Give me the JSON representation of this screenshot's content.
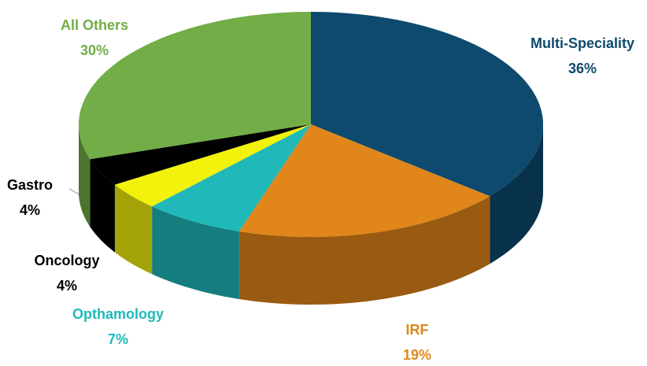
{
  "chart_data": {
    "type": "pie3d",
    "categories": [
      "Multi-Speciality",
      "IRF",
      "Opthamology",
      "Oncology",
      "Gastro",
      "All Others"
    ],
    "values": [
      36,
      19,
      7,
      4,
      4,
      30
    ],
    "value_labels": [
      "36%",
      "19%",
      "7%",
      "4%",
      "4%",
      "30%"
    ],
    "colors": [
      "#0d4a6e",
      "#e0861a",
      "#20b8b8",
      "#f2f20c",
      "#000000",
      "#72ad47"
    ],
    "label_colors": [
      "#0d4a6e",
      "#e0861a",
      "#20b8b8",
      "#000000",
      "#000000",
      "#72ad47"
    ]
  }
}
